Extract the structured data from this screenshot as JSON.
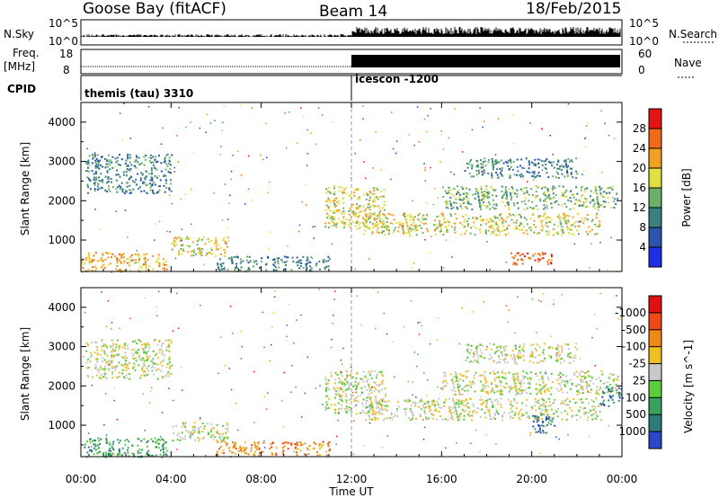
{
  "header": {
    "station": "Goose Bay (fitACF)",
    "beam": "Beam 14",
    "date": "18/Feb/2015"
  },
  "top_panels": {
    "nsky_label": "N.Sky",
    "nsearch_label": "N.Search",
    "nsky_ticks": [
      "10^5",
      "10^0"
    ],
    "nsearch_ticks": [
      "10^5",
      "10^0"
    ],
    "freq_label": "Freq.",
    "freq_unit": "[MHz]",
    "freq_ticks": [
      "18",
      "8"
    ],
    "nave_label": "Nave",
    "nave_ticks": [
      "60",
      "0"
    ],
    "cpid_label": "CPID",
    "modes": [
      {
        "name": "themis (tau) 3310",
        "start_hour": 0
      },
      {
        "name": "icescon -1200",
        "start_hour": 12
      }
    ]
  },
  "chart_data": [
    {
      "type": "heatmap",
      "id": "power",
      "ylabel": "Slant Range [km]",
      "xlabel": "",
      "ylim": [
        200,
        4500
      ],
      "yticks": [
        1000,
        2000,
        3000,
        4000
      ],
      "colorbar_label": "Power [dB]",
      "colorbar_ticks": [
        "4",
        "8",
        "12",
        "16",
        "20",
        "24",
        "28"
      ],
      "colorbar_colors": [
        "#1e2ee6",
        "#2a55a8",
        "#3b7f80",
        "#6ab06a",
        "#e0e040",
        "#f2a022",
        "#f06a18",
        "#e21414"
      ],
      "regions": [
        {
          "t0": 0.0,
          "t1": 3.8,
          "r0": 200,
          "r1": 700,
          "c": 5
        },
        {
          "t0": 0.2,
          "t1": 4.0,
          "r0": 2200,
          "r1": 3200,
          "c": 2
        },
        {
          "t0": 4.0,
          "t1": 6.5,
          "r0": 600,
          "r1": 1100,
          "c": 4
        },
        {
          "t0": 6.0,
          "t1": 11.0,
          "r0": 250,
          "r1": 600,
          "c": 2
        },
        {
          "t0": 10.8,
          "t1": 13.5,
          "r0": 1300,
          "r1": 2400,
          "c": 4
        },
        {
          "t0": 12.5,
          "t1": 23.0,
          "r0": 1150,
          "r1": 1700,
          "c": 4
        },
        {
          "t0": 16.0,
          "t1": 23.8,
          "r0": 1800,
          "r1": 2400,
          "c": 3
        },
        {
          "t0": 17.0,
          "t1": 22.0,
          "r0": 2600,
          "r1": 3100,
          "c": 2
        },
        {
          "t0": 19.0,
          "t1": 21.0,
          "r0": 400,
          "r1": 700,
          "c": 6
        }
      ]
    },
    {
      "type": "heatmap",
      "id": "velocity",
      "ylabel": "Slant Range [km]",
      "xlabel": "Time UT",
      "ylim": [
        200,
        4500
      ],
      "yticks": [
        1000,
        2000,
        3000,
        4000
      ],
      "colorbar_label": "Velocity [m s^-1]",
      "colorbar_ticks": [
        "1000",
        "500",
        "100",
        "25",
        "-25",
        "-100",
        "-500",
        "-1000"
      ],
      "colorbar_colors": [
        "#2a48c8",
        "#2d7a78",
        "#3aa060",
        "#5ccc3a",
        "#c8c8c8",
        "#f0c020",
        "#f08818",
        "#f04a14",
        "#e01010"
      ],
      "regions": [
        {
          "t0": 0.0,
          "t1": 3.8,
          "r0": 200,
          "r1": 700,
          "c": 2
        },
        {
          "t0": 0.2,
          "t1": 4.0,
          "r0": 2200,
          "r1": 3200,
          "c": 4
        },
        {
          "t0": 4.0,
          "t1": 6.5,
          "r0": 600,
          "r1": 1100,
          "c": 4
        },
        {
          "t0": 6.0,
          "t1": 11.0,
          "r0": 250,
          "r1": 600,
          "c": 6
        },
        {
          "t0": 10.8,
          "t1": 13.5,
          "r0": 1300,
          "r1": 2400,
          "c": 4
        },
        {
          "t0": 12.5,
          "t1": 23.0,
          "r0": 1150,
          "r1": 1700,
          "c": 4
        },
        {
          "t0": 16.0,
          "t1": 23.8,
          "r0": 1800,
          "r1": 2400,
          "c": 4
        },
        {
          "t0": 17.0,
          "t1": 22.0,
          "r0": 2600,
          "r1": 3100,
          "c": 4
        },
        {
          "t0": 20.0,
          "t1": 21.0,
          "r0": 800,
          "r1": 1300,
          "c": 1
        },
        {
          "t0": 23.0,
          "t1": 24.0,
          "r0": 1500,
          "r1": 2000,
          "c": 1
        }
      ]
    }
  ],
  "time_axis": {
    "ticks": [
      "00:00",
      "04:00",
      "08:00",
      "12:00",
      "16:00",
      "20:00",
      "00:00"
    ],
    "label": "Time UT",
    "range_hours": [
      0,
      24
    ]
  }
}
